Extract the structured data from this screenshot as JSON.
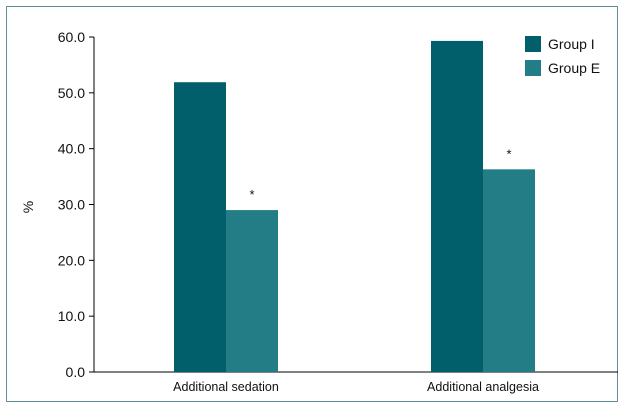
{
  "chart_data": {
    "type": "bar",
    "title": "",
    "xlabel": "",
    "ylabel": "%",
    "ylim": [
      0,
      60
    ],
    "yticks": [
      "0.0",
      "10.0",
      "20.0",
      "30.0",
      "40.0",
      "50.0",
      "60.0"
    ],
    "categories": [
      "Additional sedation",
      "Additional analgesia"
    ],
    "series": [
      {
        "name": "Group I",
        "values": [
          51.9,
          59.3
        ],
        "color": "#005f6b"
      },
      {
        "name": "Group E",
        "values": [
          29.0,
          36.3
        ],
        "color": "#237d87"
      }
    ],
    "annotations": [
      {
        "series": 1,
        "category": 0,
        "text": "*"
      },
      {
        "series": 1,
        "category": 1,
        "text": "*"
      }
    ],
    "legend_position": "top-right",
    "grid": false
  }
}
